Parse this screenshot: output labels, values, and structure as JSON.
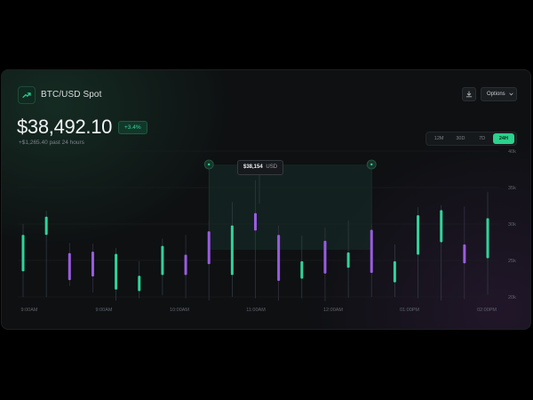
{
  "header": {
    "title": "BTC/USD Spot",
    "logo_icon": "trending-up-icon",
    "download_icon": "download-icon",
    "options_label": "Options",
    "options_icon": "chevron-down-icon"
  },
  "summary": {
    "price": "$38,492.10",
    "change_pct": "+3.4%",
    "change_text": "+$1,265.40 past 24 hours"
  },
  "range_tabs": [
    {
      "label": "12M",
      "active": false
    },
    {
      "label": "30D",
      "active": false
    },
    {
      "label": "7D",
      "active": false
    },
    {
      "label": "24H",
      "active": true
    }
  ],
  "tooltip": {
    "price": "$38,154",
    "unit": "USD"
  },
  "colors": {
    "up": "#2fd49a",
    "down": "#9a5ce0",
    "accent": "#2bd18c"
  },
  "chart_data": {
    "type": "candlestick",
    "x_tick_labels": [
      "9:00AM",
      "9:00AM",
      "10:00AM",
      "11:00AM",
      "12:00AM",
      "01:00PM",
      "02:00PM"
    ],
    "y_tick_labels": [
      "40k",
      "35k",
      "30k",
      "25k",
      "20k"
    ],
    "ylim": [
      20000,
      40000
    ],
    "highlight": {
      "start_candle": 8,
      "end_candle": 15
    },
    "candles": [
      {
        "open": 23500,
        "close": 28500,
        "high": 30000,
        "low": 20000
      },
      {
        "open": 28500,
        "close": 31000,
        "high": 31800,
        "low": 20000
      },
      {
        "open": 26000,
        "close": 22300,
        "high": 27400,
        "low": 21500
      },
      {
        "open": 26200,
        "close": 22800,
        "high": 27300,
        "low": 20600
      },
      {
        "open": 21000,
        "close": 25900,
        "high": 26700,
        "low": 19500
      },
      {
        "open": 20800,
        "close": 22900,
        "high": 24900,
        "low": 19800
      },
      {
        "open": 23000,
        "close": 27000,
        "high": 28000,
        "low": 20200
      },
      {
        "open": 25800,
        "close": 23000,
        "high": 28500,
        "low": 19800
      },
      {
        "open": 29000,
        "close": 24500,
        "high": 30500,
        "low": 19500
      },
      {
        "open": 23000,
        "close": 29800,
        "high": 33000,
        "low": 20000
      },
      {
        "open": 31500,
        "close": 29100,
        "high": 36000,
        "low": 19800
      },
      {
        "open": 28500,
        "close": 22200,
        "high": 29800,
        "low": 19500
      },
      {
        "open": 22500,
        "close": 24900,
        "high": 28400,
        "low": 19800
      },
      {
        "open": 27700,
        "close": 23200,
        "high": 29500,
        "low": 19400
      },
      {
        "open": 24000,
        "close": 26100,
        "high": 30500,
        "low": 19900
      },
      {
        "open": 29200,
        "close": 23300,
        "high": 30000,
        "low": 20000
      },
      {
        "open": 22000,
        "close": 24900,
        "high": 27200,
        "low": 20000
      },
      {
        "open": 25800,
        "close": 31200,
        "high": 32300,
        "low": 19800
      },
      {
        "open": 27500,
        "close": 31900,
        "high": 32600,
        "low": 19500
      },
      {
        "open": 27200,
        "close": 24600,
        "high": 32400,
        "low": 19700
      },
      {
        "open": 25300,
        "close": 30800,
        "high": 34400,
        "low": 20300
      }
    ]
  }
}
